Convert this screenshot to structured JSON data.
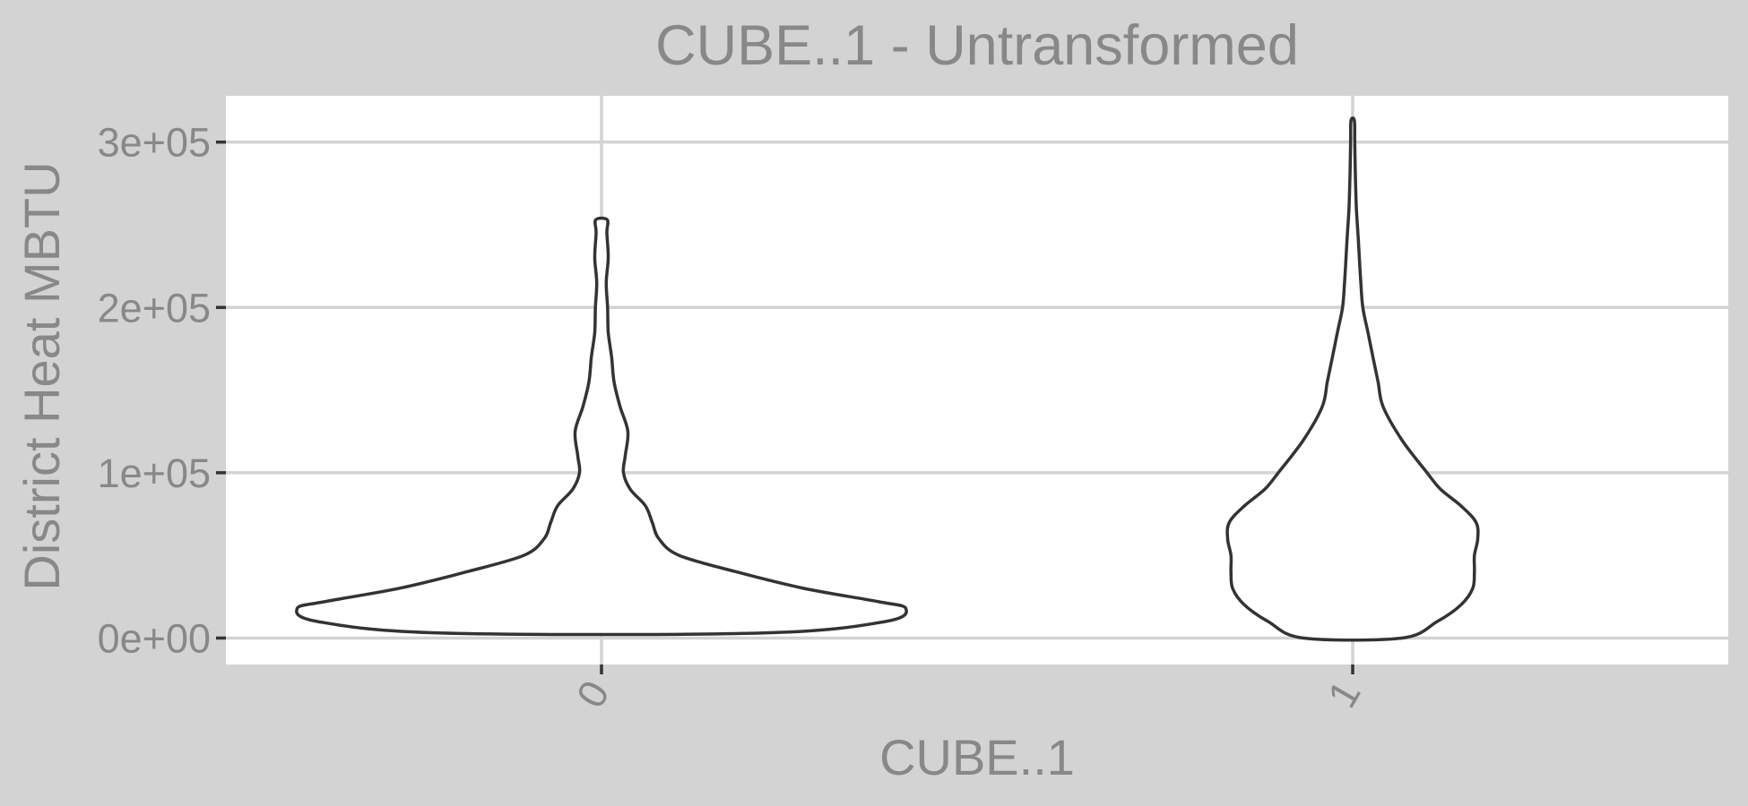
{
  "chart_data": {
    "type": "violin",
    "title": "CUBE..1 - Untransformed",
    "xlabel": "CUBE..1",
    "ylabel": "District Heat MBTU",
    "categories": [
      "0",
      "1"
    ],
    "ylim": [
      -16000,
      328000
    ],
    "y_ticks": [
      {
        "value": 0,
        "label": "0e+00"
      },
      {
        "value": 100000,
        "label": "1e+05"
      },
      {
        "value": 200000,
        "label": "2e+05"
      },
      {
        "value": 300000,
        "label": "3e+05"
      }
    ],
    "x_tick_rotation_deg": -60,
    "grid": true,
    "legend": "none",
    "series": [
      {
        "name": "0",
        "min": 3000,
        "max": 253000,
        "density_profile": [
          {
            "y": 3000,
            "w": 0.47
          },
          {
            "y": 10000,
            "w": 0.84
          },
          {
            "y": 18000,
            "w": 0.9
          },
          {
            "y": 22000,
            "w": 0.82
          },
          {
            "y": 30000,
            "w": 0.6
          },
          {
            "y": 40000,
            "w": 0.4
          },
          {
            "y": 50000,
            "w": 0.23
          },
          {
            "y": 60000,
            "w": 0.17
          },
          {
            "y": 70000,
            "w": 0.15
          },
          {
            "y": 80000,
            "w": 0.13
          },
          {
            "y": 90000,
            "w": 0.085
          },
          {
            "y": 100000,
            "w": 0.065
          },
          {
            "y": 110000,
            "w": 0.07
          },
          {
            "y": 125000,
            "w": 0.078
          },
          {
            "y": 140000,
            "w": 0.055
          },
          {
            "y": 155000,
            "w": 0.037
          },
          {
            "y": 170000,
            "w": 0.03
          },
          {
            "y": 185000,
            "w": 0.02
          },
          {
            "y": 200000,
            "w": 0.018
          },
          {
            "y": 215000,
            "w": 0.014
          },
          {
            "y": 230000,
            "w": 0.02
          },
          {
            "y": 245000,
            "w": 0.016
          },
          {
            "y": 253000,
            "w": 0.017
          }
        ]
      },
      {
        "name": "1",
        "min": 0,
        "max": 313000,
        "density_profile": [
          {
            "y": 0,
            "w": 0.145
          },
          {
            "y": 10000,
            "w": 0.25
          },
          {
            "y": 20000,
            "w": 0.32
          },
          {
            "y": 30000,
            "w": 0.355
          },
          {
            "y": 40000,
            "w": 0.36
          },
          {
            "y": 50000,
            "w": 0.36
          },
          {
            "y": 60000,
            "w": 0.37
          },
          {
            "y": 70000,
            "w": 0.365
          },
          {
            "y": 80000,
            "w": 0.32
          },
          {
            "y": 90000,
            "w": 0.26
          },
          {
            "y": 100000,
            "w": 0.22
          },
          {
            "y": 120000,
            "w": 0.145
          },
          {
            "y": 140000,
            "w": 0.09
          },
          {
            "y": 155000,
            "w": 0.075
          },
          {
            "y": 170000,
            "w": 0.06
          },
          {
            "y": 185000,
            "w": 0.045
          },
          {
            "y": 200000,
            "w": 0.03
          },
          {
            "y": 215000,
            "w": 0.024
          },
          {
            "y": 240000,
            "w": 0.017
          },
          {
            "y": 260000,
            "w": 0.011
          },
          {
            "y": 280000,
            "w": 0.008
          },
          {
            "y": 300000,
            "w": 0.006
          },
          {
            "y": 313000,
            "w": 0.005
          }
        ]
      }
    ]
  }
}
